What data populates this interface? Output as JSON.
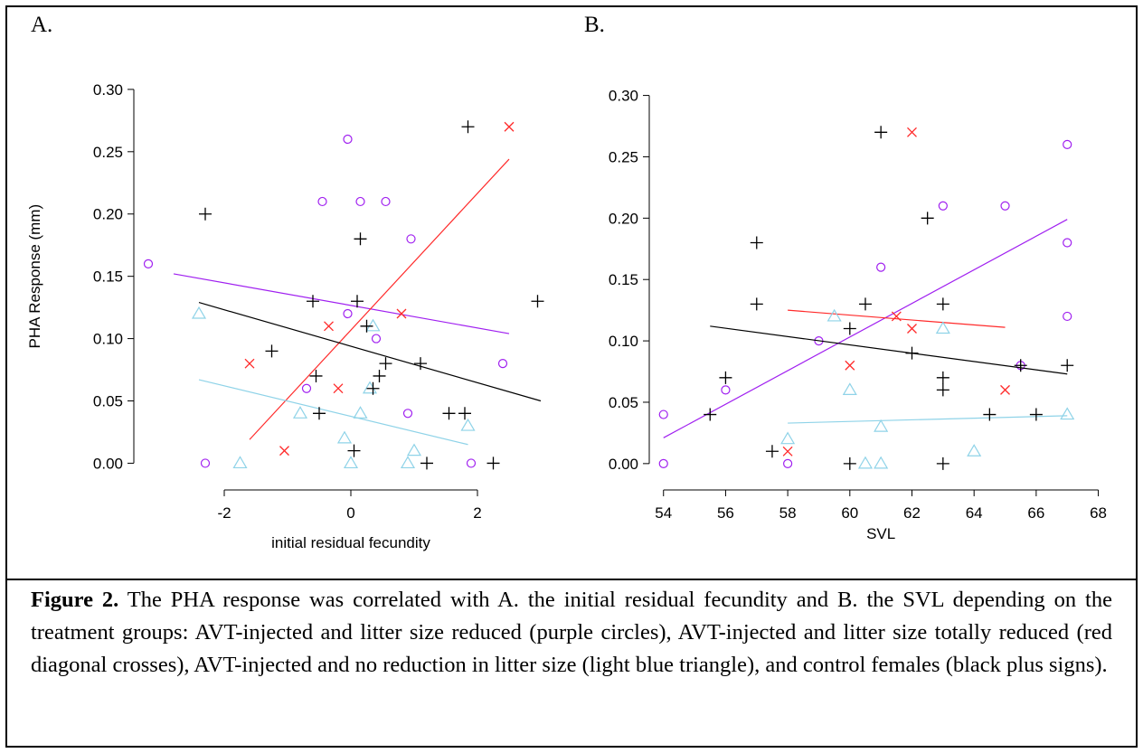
{
  "panel_a_letter": "A.",
  "panel_b_letter": "B.",
  "caption": {
    "label": "Figure 2.",
    "text": "  The PHA response was correlated with A. the initial residual fecundity and B. the SVL depending on the treatment groups: AVT-injected and litter size reduced (purple circles), AVT-injected and litter size totally reduced (red diagonal crosses), AVT-injected and no reduction in litter size (light blue triangle), and control females (black plus signs)."
  },
  "colors": {
    "purple": "#a020f0",
    "red": "#ff2a2a",
    "lightblue": "#8fd3e8",
    "black": "#000000"
  },
  "chart_data": [
    {
      "panel": "A.",
      "type": "scatter",
      "xlabel": "initial residual fecundity",
      "ylabel": "PHA Response (mm)",
      "xlim": [
        -3.4,
        3.1
      ],
      "ylim": [
        -0.02,
        0.305
      ],
      "xticks": [
        -2,
        0,
        2
      ],
      "xtick_labels": [
        "-2",
        "0",
        "2"
      ],
      "yticks": [
        0.0,
        0.05,
        0.1,
        0.15,
        0.2,
        0.25,
        0.3
      ],
      "ytick_labels": [
        "0.00",
        "0.05",
        "0.10",
        "0.15",
        "0.20",
        "0.25",
        "0.30"
      ],
      "series": [
        {
          "marker": "circle",
          "color": "#a020f0",
          "points": [
            [
              -3.2,
              0.16
            ],
            [
              -2.3,
              0.0
            ],
            [
              -0.7,
              0.06
            ],
            [
              -0.45,
              0.21
            ],
            [
              -0.05,
              0.26
            ],
            [
              -0.05,
              0.12
            ],
            [
              0.15,
              0.21
            ],
            [
              0.4,
              0.1
            ],
            [
              0.55,
              0.21
            ],
            [
              0.9,
              0.04
            ],
            [
              0.95,
              0.18
            ],
            [
              1.9,
              0.0
            ],
            [
              2.4,
              0.08
            ]
          ],
          "fit": [
            [
              -2.8,
              0.152
            ],
            [
              2.5,
              0.104
            ]
          ]
        },
        {
          "marker": "x",
          "color": "#ff2a2a",
          "points": [
            [
              -1.6,
              0.08
            ],
            [
              -1.05,
              0.01
            ],
            [
              -0.35,
              0.11
            ],
            [
              -0.2,
              0.06
            ],
            [
              0.8,
              0.12
            ],
            [
              2.5,
              0.27
            ]
          ],
          "fit": [
            [
              -1.6,
              0.019
            ],
            [
              2.5,
              0.244
            ]
          ]
        },
        {
          "marker": "triangle",
          "color": "#8fd3e8",
          "points": [
            [
              -2.4,
              0.12
            ],
            [
              -1.75,
              0.0
            ],
            [
              -0.8,
              0.04
            ],
            [
              -0.1,
              0.02
            ],
            [
              0.0,
              0.0
            ],
            [
              0.15,
              0.04
            ],
            [
              0.3,
              0.06
            ],
            [
              0.35,
              0.11
            ],
            [
              0.9,
              0.0
            ],
            [
              1.0,
              0.01
            ],
            [
              1.85,
              0.03
            ]
          ],
          "fit": [
            [
              -2.4,
              0.067
            ],
            [
              1.85,
              0.015
            ]
          ]
        },
        {
          "marker": "plus",
          "color": "#000000",
          "points": [
            [
              -2.3,
              0.2
            ],
            [
              -1.25,
              0.09
            ],
            [
              -0.55,
              0.07
            ],
            [
              -0.5,
              0.04
            ],
            [
              -0.6,
              0.13
            ],
            [
              0.05,
              0.01
            ],
            [
              0.1,
              0.13
            ],
            [
              0.15,
              0.18
            ],
            [
              0.25,
              0.11
            ],
            [
              0.35,
              0.06
            ],
            [
              0.45,
              0.07
            ],
            [
              0.55,
              0.08
            ],
            [
              1.1,
              0.08
            ],
            [
              1.2,
              0.0
            ],
            [
              1.55,
              0.04
            ],
            [
              1.8,
              0.04
            ],
            [
              1.85,
              0.27
            ],
            [
              2.25,
              0.0
            ],
            [
              2.95,
              0.13
            ]
          ],
          "fit": [
            [
              -2.4,
              0.129
            ],
            [
              3.0,
              0.05
            ]
          ]
        }
      ]
    },
    {
      "panel": "B.",
      "type": "scatter",
      "xlabel": "SVL",
      "ylabel": "",
      "xlim": [
        53.6,
        68.1
      ],
      "ylim": [
        -0.02,
        0.31
      ],
      "xticks": [
        54,
        56,
        58,
        60,
        62,
        64,
        66,
        68
      ],
      "xtick_labels": [
        "54",
        "56",
        "58",
        "60",
        "62",
        "64",
        "66",
        "68"
      ],
      "yticks": [
        0.0,
        0.05,
        0.1,
        0.15,
        0.2,
        0.25,
        0.3
      ],
      "ytick_labels": [
        "0.00",
        "0.05",
        "0.10",
        "0.15",
        "0.20",
        "0.25",
        "0.30"
      ],
      "series": [
        {
          "marker": "circle",
          "color": "#a020f0",
          "points": [
            [
              54,
              0.04
            ],
            [
              54,
              0.0
            ],
            [
              56,
              0.06
            ],
            [
              58,
              0.0
            ],
            [
              59,
              0.1
            ],
            [
              61,
              0.16
            ],
            [
              63,
              0.21
            ],
            [
              65,
              0.21
            ],
            [
              65.5,
              0.08
            ],
            [
              67,
              0.26
            ],
            [
              67,
              0.18
            ],
            [
              67,
              0.12
            ]
          ],
          "fit": [
            [
              54,
              0.021
            ],
            [
              67,
              0.199
            ]
          ]
        },
        {
          "marker": "x",
          "color": "#ff2a2a",
          "points": [
            [
              58,
              0.01
            ],
            [
              60,
              0.08
            ],
            [
              61.5,
              0.12
            ],
            [
              62,
              0.11
            ],
            [
              62,
              0.27
            ],
            [
              65,
              0.06
            ]
          ],
          "fit": [
            [
              58,
              0.125
            ],
            [
              65,
              0.111
            ]
          ]
        },
        {
          "marker": "triangle",
          "color": "#8fd3e8",
          "points": [
            [
              58,
              0.02
            ],
            [
              59.5,
              0.12
            ],
            [
              60,
              0.06
            ],
            [
              60.5,
              0.0
            ],
            [
              61,
              0.0
            ],
            [
              61,
              0.03
            ],
            [
              63,
              0.11
            ],
            [
              64,
              0.01
            ],
            [
              67,
              0.04
            ]
          ],
          "fit": [
            [
              58,
              0.033
            ],
            [
              67,
              0.039
            ]
          ]
        },
        {
          "marker": "plus",
          "color": "#000000",
          "points": [
            [
              55.5,
              0.04
            ],
            [
              56,
              0.07
            ],
            [
              57,
              0.18
            ],
            [
              57,
              0.13
            ],
            [
              57.5,
              0.01
            ],
            [
              60,
              0.11
            ],
            [
              60,
              0.0
            ],
            [
              60.5,
              0.13
            ],
            [
              61,
              0.27
            ],
            [
              62,
              0.09
            ],
            [
              62.5,
              0.2
            ],
            [
              63,
              0.13
            ],
            [
              63,
              0.07
            ],
            [
              63,
              0.06
            ],
            [
              63,
              0.0
            ],
            [
              64.5,
              0.04
            ],
            [
              65.5,
              0.08
            ],
            [
              66,
              0.04
            ],
            [
              67,
              0.08
            ]
          ],
          "fit": [
            [
              55.5,
              0.112
            ],
            [
              67,
              0.073
            ]
          ]
        }
      ]
    }
  ]
}
